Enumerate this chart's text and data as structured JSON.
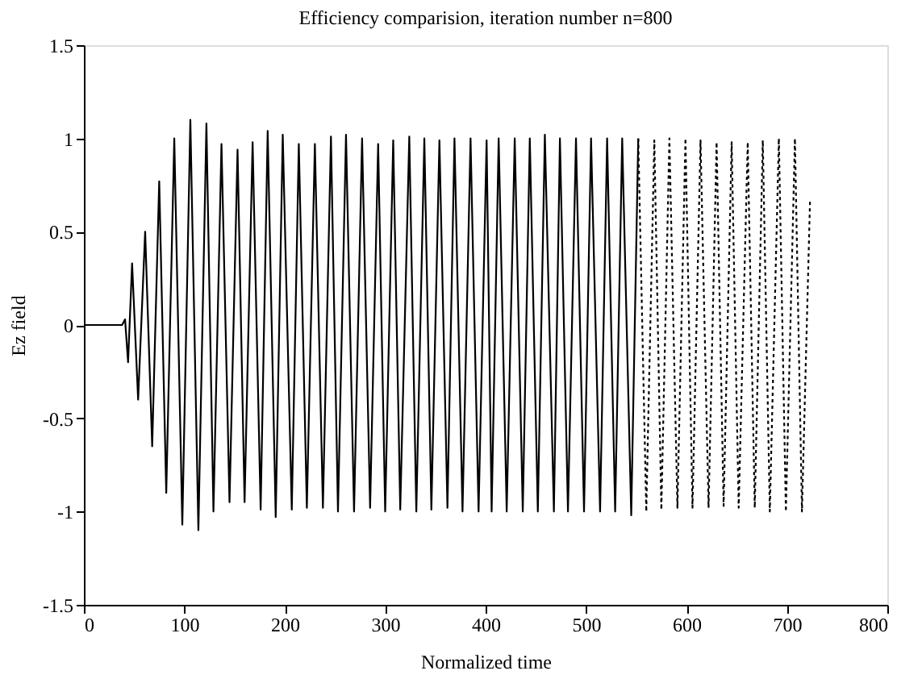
{
  "chart_data": {
    "type": "line",
    "title": "Efficiency comparision, iteration number n=800",
    "xlabel": "Normalized time",
    "ylabel": "Ez field",
    "xlim": [
      0,
      800
    ],
    "xticks": [
      0,
      100,
      200,
      300,
      400,
      500,
      600,
      700,
      800
    ],
    "ylim": [
      -1.5,
      1.5
    ],
    "yticks": [
      -1.5,
      -1,
      -0.5,
      0,
      0.5,
      1,
      1.5
    ],
    "grid": false,
    "series": [
      {
        "color": "#000000",
        "line_style": "solid",
        "x": [
          0,
          38,
          41,
          44,
          48,
          54,
          61,
          68,
          75,
          82,
          90,
          98,
          106,
          114,
          122,
          129,
          137,
          145,
          153,
          160,
          168,
          176,
          183,
          191,
          198,
          207,
          214,
          222,
          230,
          238,
          246,
          253,
          261,
          269,
          277,
          285,
          293,
          300,
          308,
          315,
          324,
          331,
          339,
          346,
          354,
          362,
          369,
          377,
          385,
          393,
          401,
          406,
          413,
          421,
          429,
          437,
          444,
          452,
          459,
          468,
          474,
          482,
          490,
          498,
          505,
          514,
          521,
          529,
          536,
          545,
          552
        ],
        "values": [
          0,
          0,
          0.03,
          -0.2,
          0.33,
          -0.4,
          0.5,
          -0.65,
          0.77,
          -0.9,
          1.0,
          -1.07,
          1.1,
          -1.1,
          1.08,
          -1.0,
          0.97,
          -0.95,
          0.94,
          -0.95,
          0.98,
          -0.99,
          1.04,
          -1.03,
          1.02,
          -0.99,
          0.97,
          -0.98,
          0.97,
          -0.98,
          1.01,
          -1.0,
          1.02,
          -1.0,
          1.0,
          -0.98,
          0.97,
          -1.0,
          0.99,
          -0.99,
          1.01,
          -1.0,
          1.0,
          -0.99,
          0.99,
          -0.98,
          1.0,
          -1.0,
          1.0,
          -1.0,
          0.99,
          -1.0,
          1.0,
          -1.0,
          1.0,
          -1.0,
          1.0,
          -1.0,
          1.02,
          -1.0,
          1.0,
          -1.0,
          1.0,
          -1.0,
          1.0,
          -1.0,
          1.0,
          -1.0,
          1.0,
          -1.02,
          1.0
        ]
      },
      {
        "color": "#000000",
        "line_style": "dotted",
        "x": [
          552,
          560,
          568,
          575,
          583,
          591,
          599,
          606,
          614,
          622,
          630,
          637,
          645,
          652,
          661,
          668,
          676,
          683,
          692,
          699,
          708,
          715,
          723
        ],
        "values": [
          1.0,
          -1.0,
          0.99,
          -0.99,
          1.0,
          -0.98,
          1.0,
          -0.98,
          0.99,
          -0.98,
          0.98,
          -0.97,
          0.98,
          -0.98,
          0.98,
          -0.98,
          0.99,
          -1.0,
          1.0,
          -1.0,
          1.0,
          -1.0,
          0.66
        ]
      }
    ]
  }
}
